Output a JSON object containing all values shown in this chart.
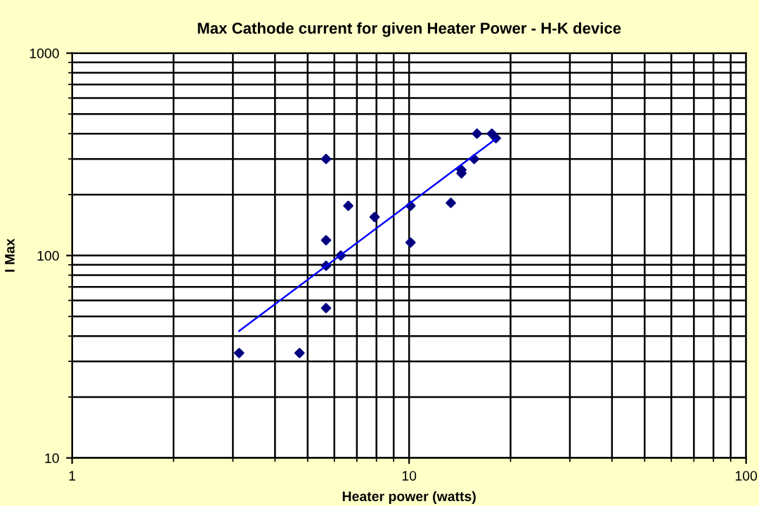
{
  "chart_data": {
    "type": "scatter",
    "title": "Max Cathode current for given Heater Power - H-K device",
    "xlabel": "Heater power (watts)",
    "ylabel": "I Max",
    "log": "xy",
    "xlim": [
      1,
      100
    ],
    "ylim": [
      10,
      1000
    ],
    "xticks": [
      1,
      10,
      100
    ],
    "yticks": [
      10,
      100,
      1000
    ],
    "grid": true,
    "legend": false,
    "marker": "diamond",
    "series": [
      {
        "color": "#000080",
        "x": [
          3.13,
          4.73,
          5.67,
          5.67,
          5.67,
          5.67,
          6.27,
          6.6,
          7.9,
          10.1,
          10.1,
          13.3,
          14.3,
          14.3,
          15.6,
          15.9,
          17.6,
          18.1
        ],
        "values": [
          33,
          33,
          300,
          119,
          89,
          55,
          100,
          176,
          155,
          176,
          116,
          182,
          255,
          265,
          300,
          400,
          400,
          380
        ]
      },
      {
        "type": "line",
        "color": "#0000ff",
        "marker": "none",
        "x": [
          3.13,
          18.1
        ],
        "values": [
          42.4,
          377
        ]
      }
    ]
  }
}
